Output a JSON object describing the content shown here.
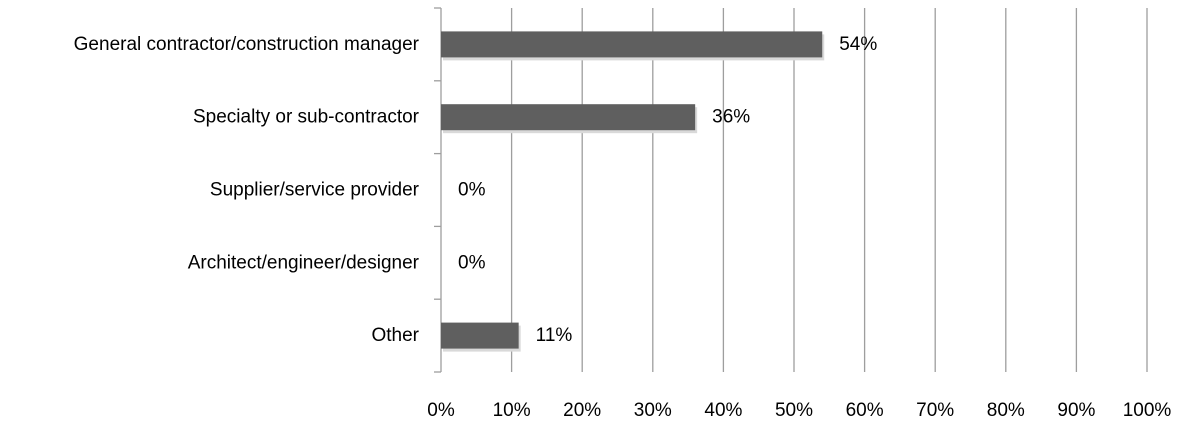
{
  "chart_data": {
    "type": "bar",
    "orientation": "horizontal",
    "title": "",
    "xlabel": "",
    "ylabel": "",
    "categories": [
      "General contractor/construction manager",
      "Specialty or sub-contractor",
      "Supplier/service provider",
      "Architect/engineer/designer",
      "Other"
    ],
    "values": [
      54,
      36,
      0,
      0,
      11
    ],
    "value_labels": [
      "54%",
      "36%",
      "0%",
      "0%",
      "11%"
    ],
    "xlim": [
      0,
      100
    ],
    "x_ticks": [
      "0%",
      "10%",
      "20%",
      "30%",
      "40%",
      "50%",
      "60%",
      "70%",
      "80%",
      "90%",
      "100%"
    ],
    "grid": "vertical",
    "legend": "none",
    "colors": {
      "bar": "#5f5f5f",
      "grid": "#9e9e9e"
    }
  }
}
